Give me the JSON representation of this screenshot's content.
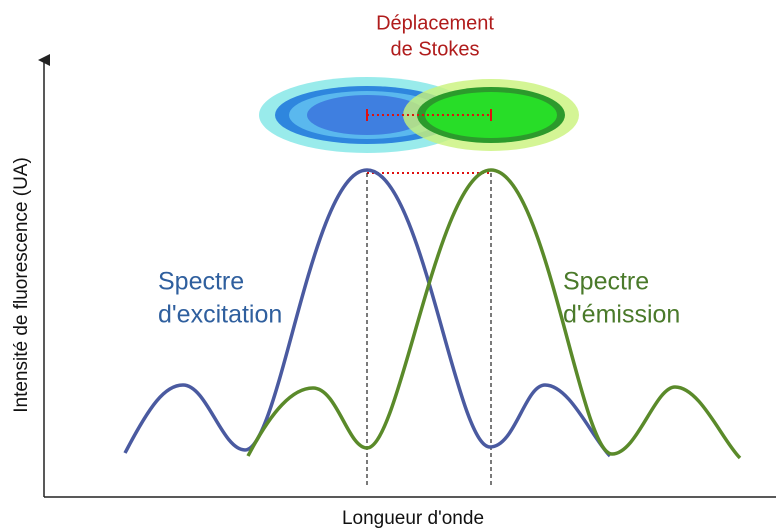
{
  "stokes_shift": {
    "lines": [
      "Déplacement",
      "de Stokes"
    ]
  },
  "y_axis_label": "Intensité de fluorescence (UA)",
  "x_axis_label": "Longueur d'onde",
  "excitation_label": {
    "lines": [
      "Spectre",
      "d'excitation"
    ]
  },
  "emission_label": {
    "lines": [
      "Spectre",
      "d'émission"
    ]
  }
}
